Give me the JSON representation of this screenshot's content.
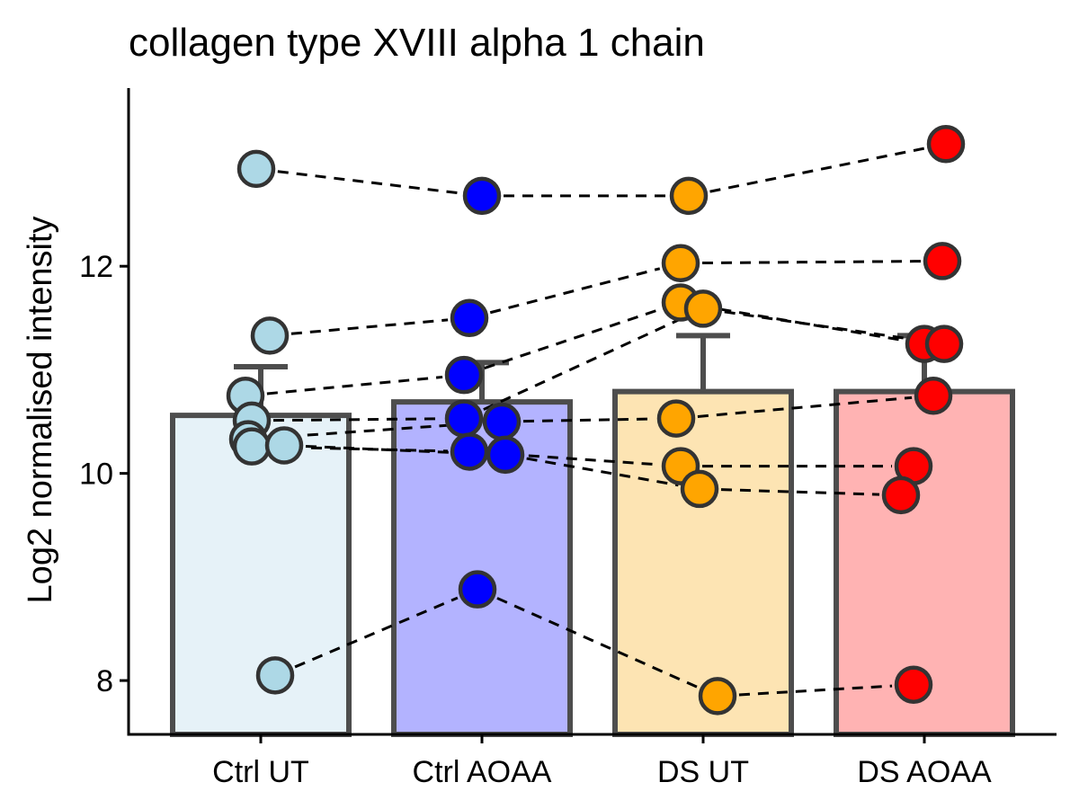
{
  "chart_data": {
    "type": "bar",
    "title": "collagen type XVIII alpha 1 chain",
    "xlabel": "",
    "ylabel": "Log2 normalised intensity",
    "ylim": [
      7.48,
      13.72
    ],
    "yticks": [
      8,
      10,
      12
    ],
    "grid": false,
    "legend": "none",
    "categories": [
      "Ctrl UT",
      "Ctrl AOAA",
      "DS UT",
      "DS AOAA"
    ],
    "series": [
      {
        "values": [
          10.56,
          10.69,
          10.79,
          10.79
        ],
        "error_upper": [
          11.03,
          11.07,
          11.33,
          11.33
        ],
        "bar_fills": [
          "#e6f2f8",
          "#b3b3ff",
          "#fde4b3",
          "#ffb3b3"
        ],
        "point_colors": [
          "#add8e6",
          "#0000ff",
          "#ffa500",
          "#ff0000"
        ]
      }
    ],
    "points": [
      [
        12.94,
        11.33,
        10.75,
        10.51,
        10.33,
        10.26,
        10.27,
        8.05
      ],
      [
        12.68,
        11.5,
        10.95,
        10.53,
        10.5,
        10.21,
        10.18,
        8.88
      ],
      [
        12.68,
        12.03,
        11.65,
        11.59,
        10.53,
        10.07,
        9.85,
        7.85
      ],
      [
        13.18,
        12.05,
        11.25,
        11.25,
        10.75,
        10.07,
        9.79,
        7.96
      ]
    ],
    "pairs": [
      [
        12.94,
        12.68,
        12.68,
        13.18
      ],
      [
        11.33,
        11.5,
        12.03,
        12.05
      ],
      [
        10.75,
        10.95,
        11.65,
        11.25
      ],
      [
        10.51,
        10.53,
        11.59,
        11.25
      ],
      [
        10.33,
        10.5,
        10.53,
        10.75
      ],
      [
        10.26,
        10.21,
        10.07,
        10.07
      ],
      [
        10.27,
        10.18,
        9.85,
        9.79
      ],
      [
        8.05,
        8.88,
        7.85,
        7.96
      ]
    ]
  }
}
